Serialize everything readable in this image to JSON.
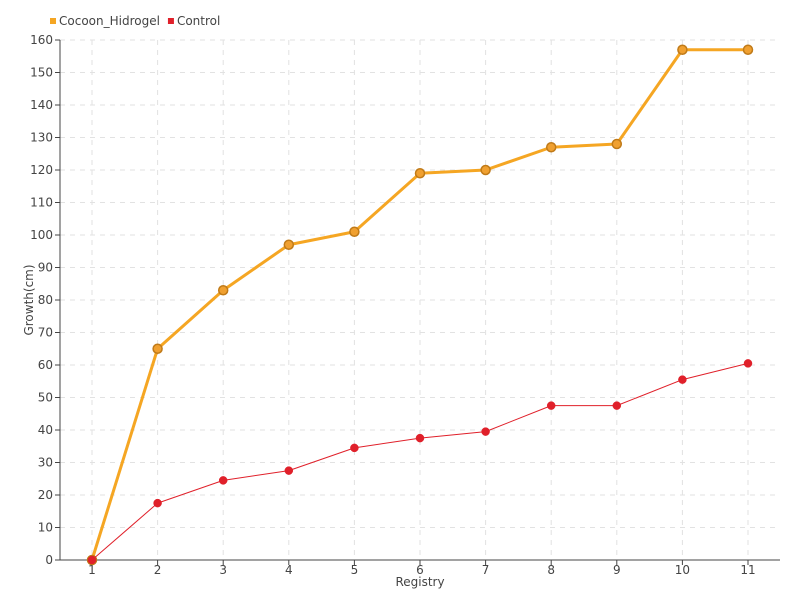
{
  "chart_data": {
    "type": "line",
    "title": "",
    "xlabel": "Registry",
    "ylabel": "Growth(cm)",
    "categories": [
      "1",
      "2",
      "3",
      "4",
      "5",
      "6",
      "7",
      "8",
      "9",
      "10",
      "11"
    ],
    "ylim": [
      0,
      160
    ],
    "yticks": [
      0,
      10,
      20,
      30,
      40,
      50,
      60,
      70,
      80,
      90,
      100,
      110,
      120,
      130,
      140,
      150,
      160
    ],
    "grid": true,
    "legend_position": "top-left",
    "series": [
      {
        "name": "Cocoon_Hidrogel",
        "color": "#F5A623",
        "marker_fill": "#F0A030",
        "marker_stroke": "#C07A18",
        "values": [
          0,
          65,
          83,
          97,
          101,
          119,
          120,
          127,
          128,
          157,
          157
        ]
      },
      {
        "name": "Control",
        "color": "#E0202A",
        "marker_fill": "#E0202A",
        "marker_stroke": "#E0202A",
        "values": [
          0,
          17.5,
          24.5,
          27.5,
          34.5,
          37.5,
          39.5,
          47.5,
          47.5,
          55.5,
          60.5
        ]
      }
    ]
  }
}
